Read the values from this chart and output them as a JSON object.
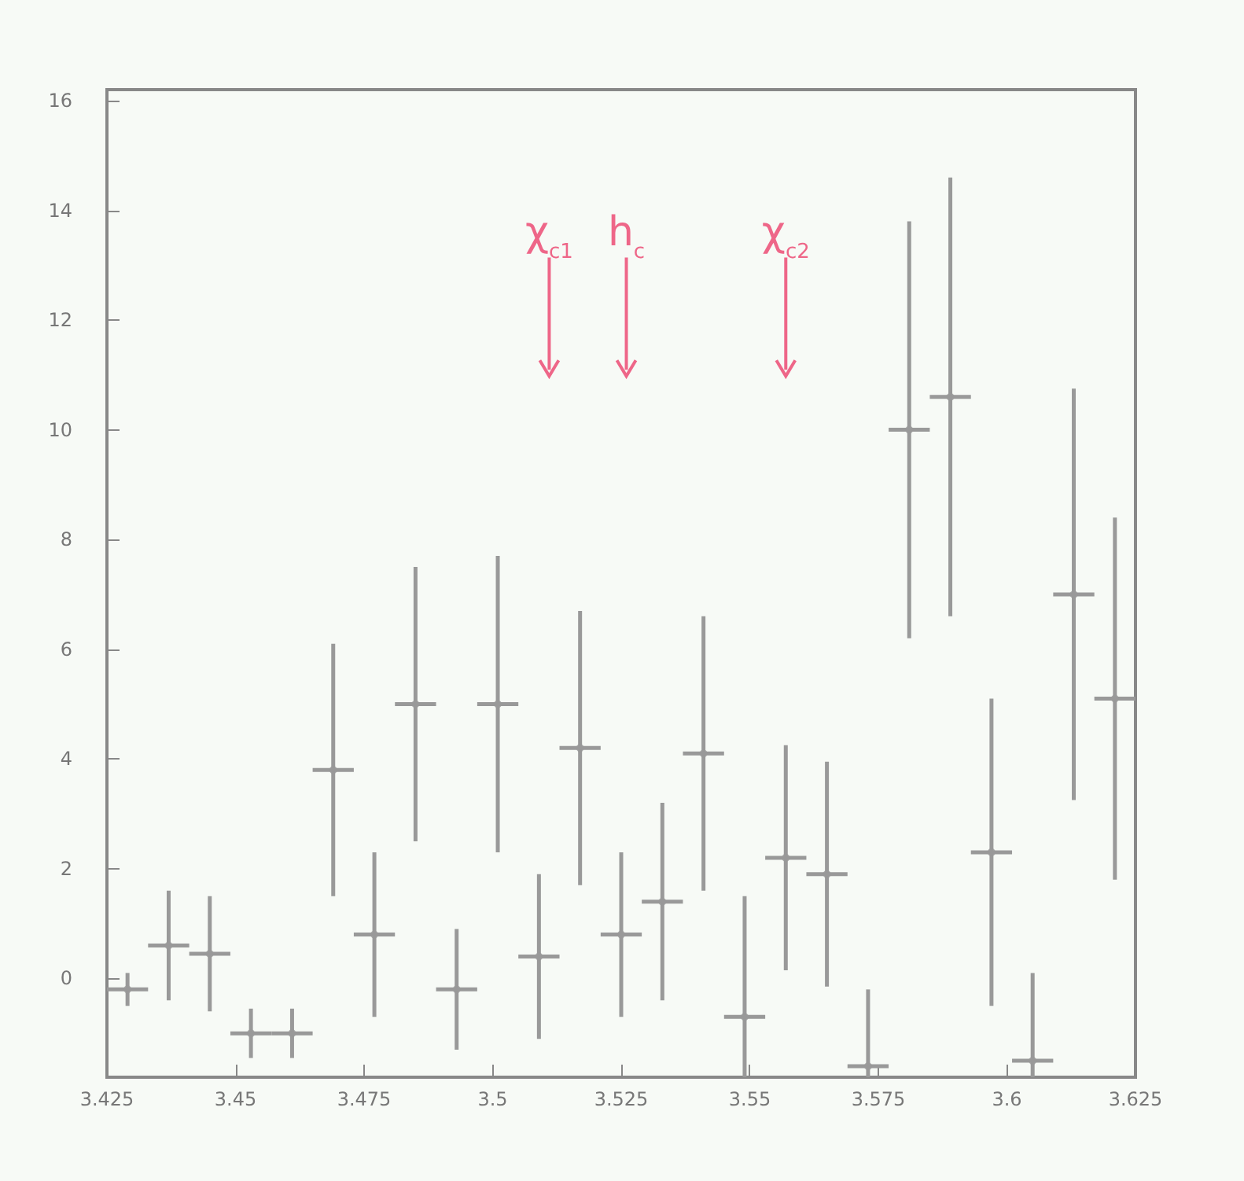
{
  "chart_data": {
    "type": "scatter",
    "x": [
      3.429,
      3.437,
      3.445,
      3.453,
      3.461,
      3.469,
      3.477,
      3.485,
      3.493,
      3.501,
      3.509,
      3.517,
      3.525,
      3.533,
      3.541,
      3.549,
      3.557,
      3.565,
      3.573,
      3.581,
      3.589,
      3.597,
      3.605,
      3.613,
      3.621
    ],
    "series": [
      {
        "color": "#999999",
        "values": [
          -0.2,
          0.6,
          0.45,
          -1.0,
          -1.0,
          3.8,
          0.8,
          5.0,
          -0.2,
          5.0,
          0.4,
          4.2,
          0.8,
          1.4,
          4.1,
          -0.7,
          2.2,
          1.9,
          -1.6,
          10.0,
          10.6,
          2.3,
          -1.5,
          7.0,
          5.1
        ],
        "errors": [
          0.3,
          1.0,
          1.05,
          0.45,
          0.45,
          2.3,
          1.5,
          2.5,
          1.1,
          2.7,
          1.5,
          2.5,
          1.5,
          1.8,
          2.5,
          [
            -1.8,
            1.5
          ],
          2.05,
          2.05,
          [
            -1.8,
            -0.2
          ],
          3.8,
          4.0,
          2.8,
          [
            -1.8,
            0.1
          ],
          3.75,
          3.3
        ],
        "xerrors": [
          0.004,
          0.004,
          0.004,
          0.004,
          0.004,
          0.004,
          0.004,
          0.004,
          0.004,
          0.004,
          0.004,
          0.004,
          0.004,
          0.004,
          0.004,
          0.004,
          0.004,
          0.004,
          0.004,
          0.004,
          0.004,
          0.004,
          0.004,
          0.004,
          0.004
        ]
      }
    ],
    "marker": "circle",
    "xlim": [
      3.425,
      3.625
    ],
    "xticks": [
      3.425,
      3.45,
      3.475,
      3.5,
      3.525,
      3.55,
      3.575,
      3.6,
      3.625
    ],
    "ylim": [
      -1.8,
      16.2
    ],
    "yticks": [
      0,
      2,
      4,
      6,
      8,
      10,
      12,
      14,
      16
    ],
    "ref_lines": [
      {
        "axis": "x",
        "value": 3.511,
        "label": "χ$_{c1}$",
        "color": "#ee6688"
      },
      {
        "axis": "x",
        "value": 3.526,
        "label": "h$_{c}$",
        "color": "#ee6688"
      },
      {
        "axis": "x",
        "value": 3.557,
        "label": "χ$_{c2}$",
        "color": "#ee6688"
      }
    ],
    "grid": false
  }
}
